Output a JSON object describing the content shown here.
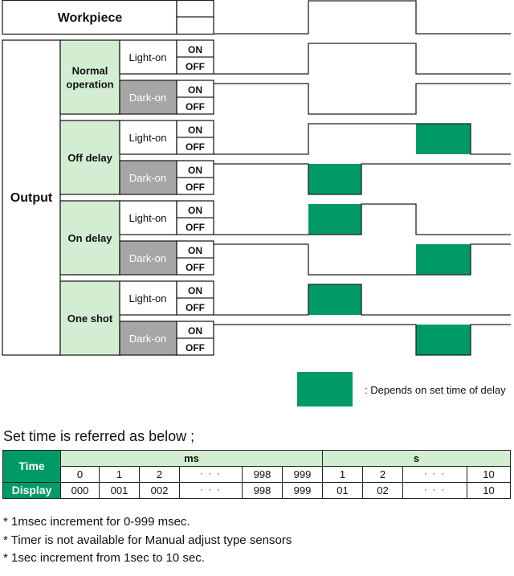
{
  "diagram": {
    "workpiece_label": "Workpiece",
    "output_label": "Output",
    "state_on": "ON",
    "state_off": "OFF",
    "colors": {
      "delay_fill": "#009a66",
      "mode_bg": "#d3edd3",
      "dark_bg": "#a6a6a6",
      "line": "#222222"
    },
    "groups": [
      {
        "label": [
          "Normal",
          "operation"
        ],
        "rows": [
          {
            "mode": "Light-on",
            "wave": "N_L"
          },
          {
            "mode": "Dark-on",
            "wave": "N_D"
          }
        ]
      },
      {
        "label": [
          "Off delay"
        ],
        "rows": [
          {
            "mode": "Light-on",
            "wave": "OFF_L"
          },
          {
            "mode": "Dark-on",
            "wave": "OFF_D"
          }
        ]
      },
      {
        "label": [
          "On delay"
        ],
        "rows": [
          {
            "mode": "Light-on",
            "wave": "ON_L"
          },
          {
            "mode": "Dark-on",
            "wave": "ON_D"
          }
        ]
      },
      {
        "label": [
          "One shot"
        ],
        "rows": [
          {
            "mode": "Light-on",
            "wave": "OS_L"
          },
          {
            "mode": "Dark-on",
            "wave": "OS_D"
          }
        ]
      }
    ]
  },
  "legend": {
    "text": ": Depends on set time of delay"
  },
  "set_time": {
    "title": "Set time is referred as below ;",
    "time_header": "Time",
    "display_header": "Display",
    "units": [
      {
        "label": "ms",
        "span": 6
      },
      {
        "label": "s",
        "span": 4
      }
    ],
    "time_values": [
      "0",
      "1",
      "2",
      "· · ·",
      "998",
      "999",
      "1",
      "2",
      "· · ·",
      "10"
    ],
    "display_values": [
      "000",
      "001",
      "002",
      "· · ·",
      "998",
      "999",
      "01",
      "02",
      "· · ·",
      "10"
    ]
  },
  "notes": [
    "* 1msec increment for 0-999 msec.",
    "* Timer is not available for Manual adjust type sensors",
    "* 1sec increment from 1sec to 10 sec."
  ]
}
